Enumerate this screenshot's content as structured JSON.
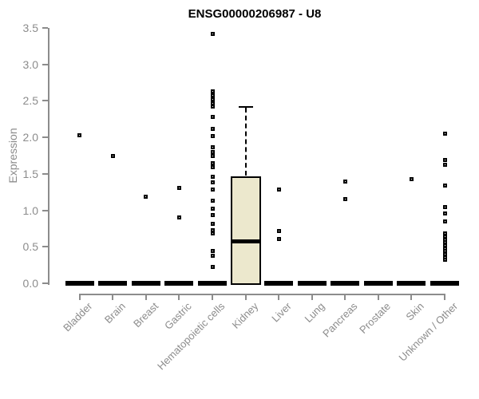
{
  "title": "ENSG00000206987 - U8",
  "chart_data": {
    "type": "boxplot",
    "title": "ENSG00000206987 - U8",
    "ylabel": "Expression",
    "xlabel": "",
    "ylim": [
      0,
      3.5
    ],
    "yticks": [
      0.0,
      0.5,
      1.0,
      1.5,
      2.0,
      2.5,
      3.0,
      3.5
    ],
    "grid": false,
    "legend": "none",
    "colors": {
      "box_fill": "#ece8cd",
      "box_border": "#000000",
      "point": "#000000",
      "axis": "#8c8c8c",
      "title": "#000000"
    },
    "categories": [
      {
        "label": "Bladder",
        "box": {
          "q1": 0,
          "median": 0,
          "q3": 0,
          "whisker_low": 0,
          "whisker_high": 0,
          "collapsed": true
        },
        "outliers": [
          2.03
        ]
      },
      {
        "label": "Brain",
        "box": {
          "q1": 0,
          "median": 0,
          "q3": 0,
          "whisker_low": 0,
          "whisker_high": 0,
          "collapsed": true
        },
        "outliers": [
          1.75
        ]
      },
      {
        "label": "Breast",
        "box": {
          "q1": 0,
          "median": 0,
          "q3": 0,
          "whisker_low": 0,
          "whisker_high": 0,
          "collapsed": true
        },
        "outliers": [
          1.19
        ]
      },
      {
        "label": "Gastric",
        "box": {
          "q1": 0,
          "median": 0,
          "q3": 0,
          "whisker_low": 0,
          "whisker_high": 0,
          "collapsed": true
        },
        "outliers": [
          1.31,
          0.9
        ]
      },
      {
        "label": "Hematopoietic cells",
        "box": {
          "q1": 0,
          "median": 0,
          "q3": 0,
          "whisker_low": 0,
          "whisker_high": 0,
          "collapsed": true
        },
        "outliers": [
          3.42,
          2.63,
          2.58,
          2.52,
          2.47,
          2.42,
          2.28,
          2.12,
          2.02,
          1.86,
          1.8,
          1.74,
          1.65,
          1.59,
          1.46,
          1.38,
          1.28,
          1.13,
          1.02,
          0.93,
          0.82,
          0.73,
          0.68,
          0.44,
          0.38,
          0.22
        ]
      },
      {
        "label": "Kidney",
        "box": {
          "q1": 0.0,
          "median": 0.58,
          "q3": 1.47,
          "whisker_low": 0.0,
          "whisker_high": 2.42,
          "collapsed": false
        },
        "outliers": []
      },
      {
        "label": "Liver",
        "box": {
          "q1": 0,
          "median": 0,
          "q3": 0,
          "whisker_low": 0,
          "whisker_high": 0,
          "collapsed": true
        },
        "outliers": [
          1.29,
          0.72,
          0.61
        ]
      },
      {
        "label": "Lung",
        "box": {
          "q1": 0,
          "median": 0,
          "q3": 0,
          "whisker_low": 0,
          "whisker_high": 0,
          "collapsed": true
        },
        "outliers": []
      },
      {
        "label": "Pancreas",
        "box": {
          "q1": 0,
          "median": 0,
          "q3": 0,
          "whisker_low": 0,
          "whisker_high": 0,
          "collapsed": true
        },
        "outliers": [
          1.39,
          1.15
        ]
      },
      {
        "label": "Prostate",
        "box": {
          "q1": 0,
          "median": 0,
          "q3": 0,
          "whisker_low": 0,
          "whisker_high": 0,
          "collapsed": true
        },
        "outliers": []
      },
      {
        "label": "Skin",
        "box": {
          "q1": 0,
          "median": 0,
          "q3": 0,
          "whisker_low": 0,
          "whisker_high": 0,
          "collapsed": true
        },
        "outliers": [
          1.43
        ]
      },
      {
        "label": "Unknown / Other",
        "box": {
          "q1": 0,
          "median": 0,
          "q3": 0,
          "whisker_low": 0,
          "whisker_high": 0,
          "collapsed": true
        },
        "outliers": [
          2.05,
          1.69,
          1.62,
          1.34,
          1.04,
          0.96,
          0.85,
          0.68,
          0.64,
          0.6,
          0.56,
          0.52,
          0.48,
          0.44,
          0.4,
          0.36,
          0.32
        ]
      }
    ]
  }
}
